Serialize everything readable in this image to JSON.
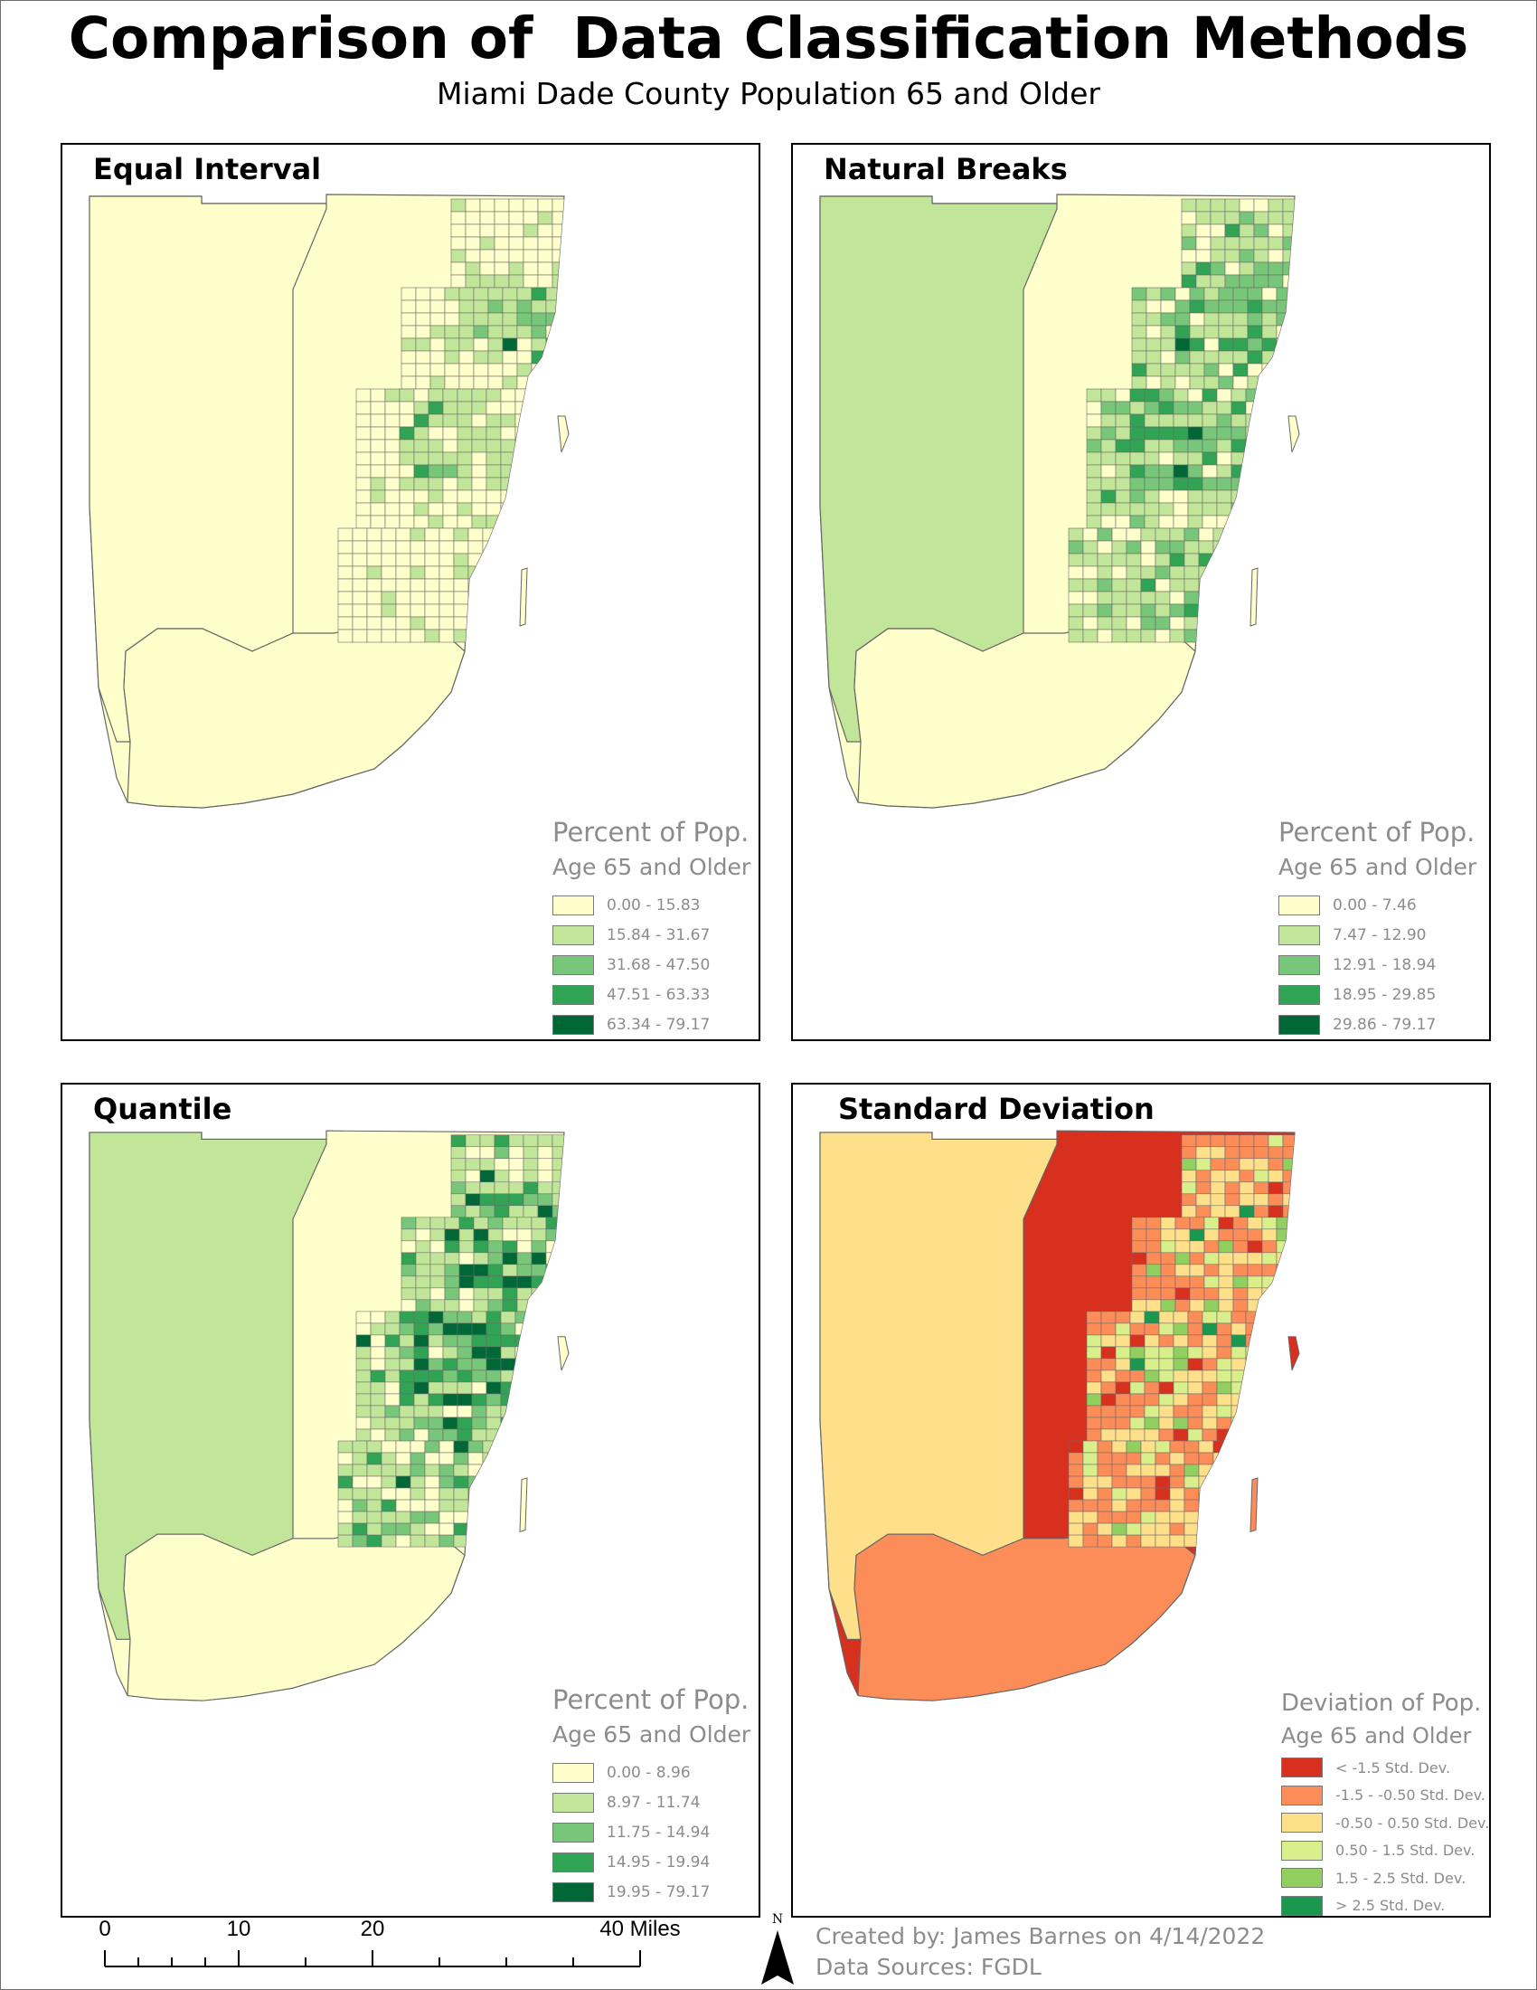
{
  "title": "Comparison of  Data Classification Methods",
  "subtitle": "Miami Dade County Population 65 and Older",
  "panels": [
    {
      "title": "Equal Interval",
      "legend_title": "Percent of Pop.",
      "legend_subtitle": "Age 65 and Older",
      "classes": [
        {
          "label": "0.00 - 15.83",
          "color": "#ffffcc"
        },
        {
          "label": "15.84 - 31.67",
          "color": "#c2e699"
        },
        {
          "label": "31.68 - 47.50",
          "color": "#78c679"
        },
        {
          "label": "47.51 - 63.33",
          "color": "#31a354"
        },
        {
          "label": "63.34 - 79.17",
          "color": "#006837"
        }
      ],
      "west_color": "#ffffcc",
      "south_color": "#ffffcc"
    },
    {
      "title": "Natural Breaks",
      "legend_title": "Percent of Pop.",
      "legend_subtitle": "Age 65 and Older",
      "classes": [
        {
          "label": "0.00 - 7.46",
          "color": "#ffffcc"
        },
        {
          "label": "7.47 - 12.90",
          "color": "#c2e699"
        },
        {
          "label": "12.91 - 18.94",
          "color": "#78c679"
        },
        {
          "label": "18.95 - 29.85",
          "color": "#31a354"
        },
        {
          "label": "29.86 - 79.17",
          "color": "#006837"
        }
      ],
      "west_color": "#c2e699",
      "south_color": "#ffffcc"
    },
    {
      "title": "Quantile",
      "legend_title": "Percent of Pop.",
      "legend_subtitle": "Age 65 and Older",
      "classes": [
        {
          "label": "0.00 - 8.96",
          "color": "#ffffcc"
        },
        {
          "label": "8.97 - 11.74",
          "color": "#c2e699"
        },
        {
          "label": "11.75 - 14.94",
          "color": "#78c679"
        },
        {
          "label": "14.95 - 19.94",
          "color": "#31a354"
        },
        {
          "label": "19.95 - 79.17",
          "color": "#006837"
        }
      ],
      "west_color": "#c2e699",
      "south_color": "#ffffcc"
    },
    {
      "title": "Standard Deviation",
      "legend_title": "Deviation of Pop.",
      "legend_subtitle": "Age 65 and Older",
      "classes": [
        {
          "label": "< -1.5 Std. Dev.",
          "color": "#d7301f"
        },
        {
          "label": "-1.5 - -0.50 Std. Dev.",
          "color": "#fc8d59"
        },
        {
          "label": "-0.50 - 0.50 Std. Dev.",
          "color": "#fee08b"
        },
        {
          "label": "0.50 - 1.5 Std. Dev.",
          "color": "#d9ef8b"
        },
        {
          "label": "1.5 - 2.5 Std. Dev.",
          "color": "#91cf60"
        },
        {
          "label": "> 2.5 Std. Dev.",
          "color": "#1a9850"
        }
      ],
      "west_color": "#fee08b",
      "south_color": "#fc8d59"
    }
  ],
  "scale_bar": {
    "ticks": [
      "0",
      "10",
      "20",
      "40 Miles"
    ]
  },
  "north_arrow": {
    "label": "N"
  },
  "credits": {
    "created_by": "Created by: James Barnes on 4/14/2022",
    "data_sources": "Data Sources: FGDL"
  }
}
